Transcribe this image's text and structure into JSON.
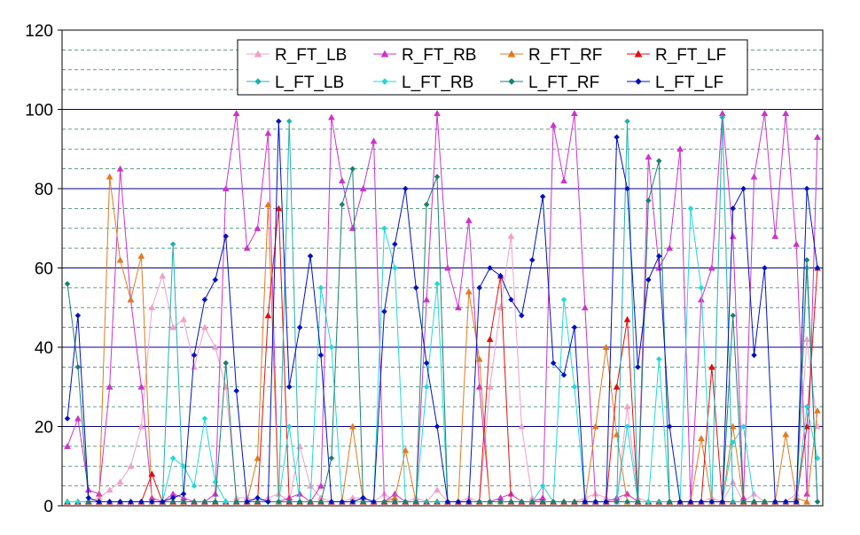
{
  "chart_data": {
    "type": "line",
    "title": "",
    "xlabel": "",
    "ylabel": "",
    "ylim": [
      0,
      120
    ],
    "yticks": [
      "0",
      "20",
      "40",
      "60",
      "80",
      "100",
      "120"
    ],
    "grid": {
      "major_y": 20,
      "minor_y": 5,
      "x": false
    },
    "legend_position": "top-right, inside plot, 4 columns x 2 rows",
    "n_points": 72,
    "series": [
      {
        "name": "R_FT_LB",
        "color": "#f0a0c8",
        "marker": "triangle",
        "values": [
          1,
          1,
          1,
          2,
          4,
          6,
          10,
          20,
          50,
          58,
          45,
          47,
          35,
          45,
          40,
          30,
          2,
          2,
          1,
          2,
          3,
          1,
          15,
          5,
          2,
          1,
          1,
          2,
          2,
          1,
          3,
          1,
          1,
          2,
          1,
          4,
          1,
          1,
          2,
          1,
          30,
          50,
          68,
          20,
          2,
          1,
          1,
          1,
          1,
          2,
          3,
          2,
          1,
          25,
          2,
          1,
          1,
          1,
          1,
          1,
          1,
          2,
          1,
          6,
          1,
          3,
          1,
          1,
          1,
          3,
          42,
          20
        ]
      },
      {
        "name": "R_FT_RB",
        "color": "#cc33cc",
        "marker": "triangle",
        "values": [
          15,
          22,
          4,
          3,
          30,
          85,
          52,
          30,
          2,
          1,
          3,
          2,
          1,
          1,
          3,
          80,
          99,
          65,
          70,
          94,
          1,
          2,
          3,
          1,
          5,
          98,
          82,
          70,
          80,
          92,
          1,
          3,
          1,
          1,
          52,
          99,
          60,
          50,
          72,
          30,
          1,
          2,
          3,
          1,
          1,
          2,
          96,
          82,
          99,
          50,
          1,
          1,
          2,
          3,
          1,
          88,
          60,
          65,
          90,
          1,
          52,
          60,
          99,
          68,
          2,
          83,
          99,
          68,
          99,
          66,
          3,
          93
        ]
      },
      {
        "name": "R_FT_RF",
        "color": "#e07a20",
        "marker": "triangle",
        "values": [
          1,
          1,
          1,
          1,
          83,
          62,
          52,
          63,
          1,
          1,
          1,
          1,
          1,
          1,
          1,
          1,
          1,
          1,
          12,
          76,
          1,
          1,
          1,
          1,
          1,
          1,
          1,
          20,
          1,
          1,
          1,
          2,
          14,
          1,
          1,
          1,
          1,
          1,
          54,
          37,
          1,
          1,
          1,
          1,
          1,
          1,
          1,
          1,
          1,
          1,
          20,
          40,
          18,
          1,
          1,
          1,
          1,
          1,
          1,
          1,
          17,
          1,
          1,
          20,
          1,
          1,
          1,
          1,
          18,
          2,
          1,
          24
        ]
      },
      {
        "name": "R_FT_LF",
        "color": "#e01010",
        "marker": "triangle",
        "values": [
          1,
          1,
          1,
          1,
          1,
          1,
          1,
          1,
          8,
          1,
          1,
          1,
          1,
          1,
          1,
          1,
          1,
          1,
          1,
          48,
          75,
          1,
          1,
          1,
          1,
          1,
          1,
          1,
          1,
          1,
          1,
          1,
          1,
          1,
          1,
          1,
          1,
          1,
          1,
          1,
          42,
          58,
          1,
          1,
          1,
          1,
          1,
          1,
          1,
          1,
          1,
          1,
          30,
          47,
          1,
          1,
          1,
          1,
          1,
          1,
          1,
          35,
          1,
          1,
          1,
          1,
          1,
          1,
          1,
          1,
          20,
          60
        ]
      },
      {
        "name": "L_FT_LB",
        "color": "#20b0b0",
        "marker": "diamond",
        "values": [
          1,
          1,
          1,
          1,
          1,
          1,
          1,
          1,
          1,
          1,
          66,
          1,
          1,
          1,
          1,
          1,
          1,
          1,
          1,
          1,
          1,
          97,
          1,
          1,
          1,
          1,
          1,
          1,
          1,
          1,
          1,
          1,
          1,
          1,
          1,
          1,
          1,
          1,
          1,
          1,
          1,
          1,
          1,
          1,
          1,
          1,
          1,
          1,
          1,
          1,
          1,
          1,
          1,
          97,
          1,
          1,
          1,
          1,
          1,
          1,
          1,
          1,
          98,
          1,
          1,
          1,
          1,
          1,
          1,
          1,
          60,
          1
        ]
      },
      {
        "name": "L_FT_RB",
        "color": "#20d8d8",
        "marker": "diamond",
        "values": [
          1,
          1,
          1,
          1,
          1,
          1,
          1,
          1,
          1,
          1,
          12,
          10,
          5,
          22,
          6,
          1,
          1,
          1,
          1,
          1,
          1,
          20,
          1,
          1,
          55,
          40,
          1,
          1,
          1,
          1,
          70,
          60,
          1,
          1,
          30,
          56,
          1,
          1,
          1,
          1,
          1,
          1,
          1,
          1,
          1,
          5,
          1,
          52,
          30,
          1,
          1,
          1,
          1,
          20,
          1,
          1,
          37,
          1,
          1,
          75,
          55,
          1,
          1,
          16,
          20,
          1,
          1,
          1,
          1,
          1,
          25,
          12
        ]
      },
      {
        "name": "L_FT_RF",
        "color": "#1a8070",
        "marker": "diamond",
        "values": [
          56,
          35,
          1,
          1,
          1,
          1,
          1,
          1,
          1,
          1,
          1,
          1,
          1,
          1,
          1,
          36,
          1,
          1,
          1,
          1,
          1,
          1,
          1,
          1,
          1,
          12,
          76,
          85,
          1,
          1,
          1,
          1,
          1,
          1,
          76,
          83,
          1,
          1,
          1,
          1,
          1,
          1,
          1,
          1,
          1,
          1,
          1,
          1,
          1,
          1,
          1,
          1,
          1,
          1,
          1,
          77,
          87,
          1,
          1,
          1,
          1,
          1,
          1,
          48,
          1,
          1,
          1,
          1,
          1,
          1,
          62,
          1
        ]
      },
      {
        "name": "L_FT_LF",
        "color": "#0010c0",
        "marker": "diamond",
        "values": [
          22,
          48,
          2,
          1,
          1,
          1,
          1,
          1,
          1,
          1,
          2,
          3,
          38,
          52,
          57,
          68,
          29,
          1,
          2,
          1,
          97,
          30,
          45,
          63,
          38,
          1,
          1,
          1,
          2,
          1,
          49,
          66,
          80,
          55,
          36,
          20,
          1,
          1,
          1,
          55,
          60,
          58,
          52,
          48,
          62,
          78,
          36,
          33,
          45,
          1,
          1,
          1,
          93,
          80,
          35,
          57,
          63,
          20,
          1,
          1,
          1,
          1,
          1,
          75,
          80,
          38,
          60,
          1,
          1,
          1,
          80,
          60
        ]
      }
    ]
  }
}
